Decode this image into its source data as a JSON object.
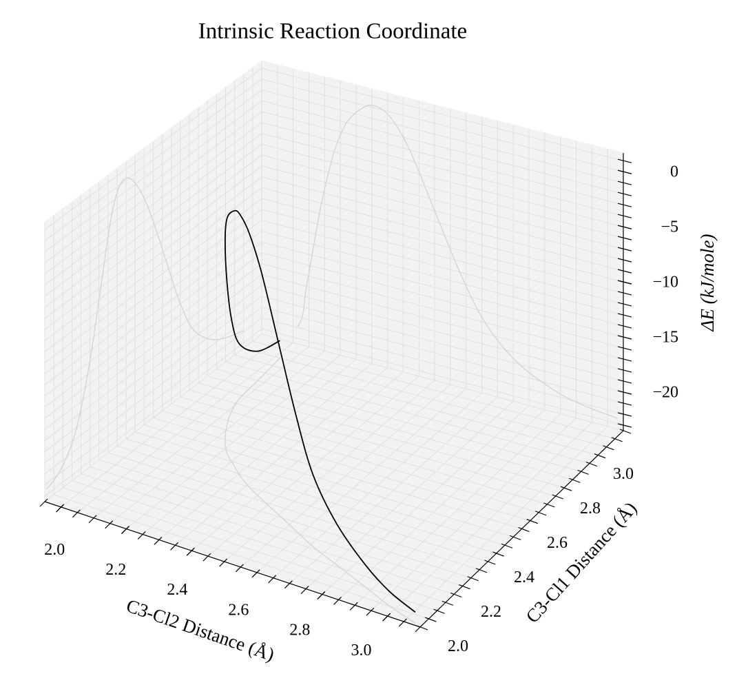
{
  "chart_data": {
    "type": "line3d",
    "title": "Intrinsic Reaction Coordinate",
    "x_label": "C3-Cl2 Distance (Å)",
    "y_label": "C3-Cl1 Distance (Å)",
    "z_label": "ΔE (kJ/mole)",
    "x": [
      2.065,
      2.08,
      2.09,
      2.11,
      2.14,
      2.18,
      2.22,
      2.27,
      2.31,
      2.36,
      2.42,
      2.5,
      2.58,
      2.66,
      2.76,
      2.88,
      2.98,
      3.08
    ],
    "y": [
      3.05,
      2.9,
      2.78,
      2.7,
      2.62,
      2.54,
      2.48,
      2.43,
      2.39,
      2.35,
      2.31,
      2.26,
      2.21,
      2.16,
      2.11,
      2.05,
      2.0,
      1.96
    ],
    "z": [
      -21.9,
      -20.8,
      -18.5,
      -15,
      -10,
      -5,
      -2,
      -0.3,
      0.2,
      -0.5,
      -3,
      -8,
      -13,
      -17,
      -19.8,
      -21.5,
      -22.2,
      -22.5
    ],
    "color": "#000000",
    "projection_color": "#d3d3d3",
    "projections": true,
    "xlim": [
      1.95,
      3.1
    ],
    "ylim": [
      1.95,
      3.15
    ],
    "zlim": [
      -23.5,
      1.7
    ],
    "xticks": [
      {
        "value": 2.0,
        "label": "2.0"
      },
      {
        "value": 2.2,
        "label": "2.2"
      },
      {
        "value": 2.4,
        "label": "2.4"
      },
      {
        "value": 2.6,
        "label": "2.6"
      },
      {
        "value": 2.8,
        "label": "2.8"
      },
      {
        "value": 3.0,
        "label": "3.0"
      }
    ],
    "yticks": [
      {
        "value": 2.0,
        "label": "2.0"
      },
      {
        "value": 2.2,
        "label": "2.2"
      },
      {
        "value": 2.4,
        "label": "2.4"
      },
      {
        "value": 2.6,
        "label": "2.6"
      },
      {
        "value": 2.8,
        "label": "2.8"
      },
      {
        "value": 3.0,
        "label": "3.0"
      }
    ],
    "zticks": [
      0,
      {
        "value": -5,
        "label": "−5"
      },
      {
        "value": -10,
        "label": "−10"
      },
      {
        "value": -15,
        "label": "−15"
      },
      {
        "value": -20,
        "label": "−20"
      }
    ],
    "x_minor_step": 0.05,
    "y_minor_step": 0.05,
    "z_minor_step": 1,
    "grid": true
  }
}
